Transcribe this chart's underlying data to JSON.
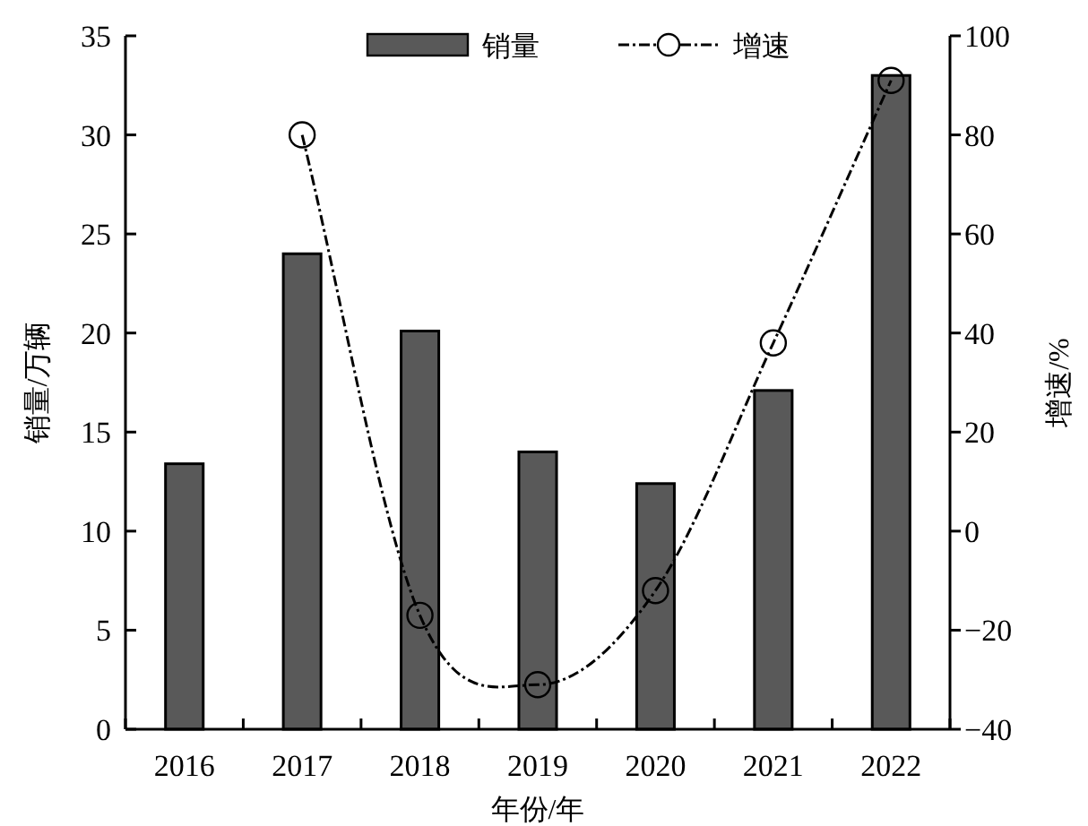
{
  "chart_data": {
    "type": "bar",
    "xlabel": "年份/年",
    "ylabel": "销量/万辆",
    "y2label": "增速/%",
    "categories": [
      "2016",
      "2017",
      "2018",
      "2019",
      "2020",
      "2021",
      "2022"
    ],
    "series": [
      {
        "name": "销量",
        "color": "#595959",
        "values": [
          13.4,
          24.0,
          20.1,
          14.0,
          12.4,
          17.1,
          33.0
        ]
      },
      {
        "name": "增速",
        "type": "line",
        "axis": "y2",
        "color": "#000000",
        "marker": "circle",
        "line_style": "dashed",
        "values": [
          null,
          80,
          -17,
          -31,
          -12,
          38,
          91
        ]
      }
    ],
    "ylim": [
      0,
      35
    ],
    "yticks": [
      0,
      5,
      10,
      15,
      20,
      25,
      30,
      35
    ],
    "y2lim": [
      -40,
      100
    ],
    "y2ticks": [
      {
        "value": -40,
        "label": "−40"
      },
      {
        "value": -20,
        "label": "−20"
      },
      0,
      20,
      40,
      60,
      80,
      100
    ],
    "legend": "top",
    "grid": false
  }
}
